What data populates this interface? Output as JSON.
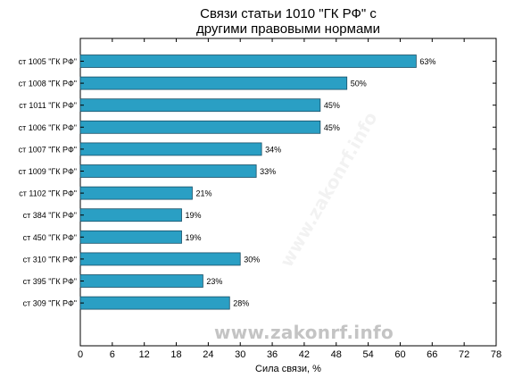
{
  "page": {
    "watermark": "www.zakonrf.info"
  },
  "chart_data": {
    "type": "bar",
    "orientation": "horizontal",
    "title": [
      "Связи статьи 1010 \"ГК РФ\" с",
      "другими правовыми нормами"
    ],
    "xlabel": "Сила связи, %",
    "ylabel": "",
    "xlim": [
      0,
      78
    ],
    "xticks": [
      0,
      6,
      12,
      18,
      24,
      30,
      36,
      42,
      48,
      54,
      60,
      66,
      72,
      78
    ],
    "grid": false,
    "bar_color": "#2a9fc4",
    "bar_edge_color": "#1a4f66",
    "categories": [
      "ст 1005 \"ГК РФ\"",
      "ст 1008 \"ГК РФ\"",
      "ст 1011 \"ГК РФ\"",
      "ст 1006 \"ГК РФ\"",
      "ст 1007 \"ГК РФ\"",
      "ст 1009 \"ГК РФ\"",
      "ст 1102 \"ГК РФ\"",
      "ст 384 \"ГК РФ\"",
      "ст 450 \"ГК РФ\"",
      "ст 310 \"ГК РФ\"",
      "ст 395 \"ГК РФ\"",
      "ст 309 \"ГК РФ\""
    ],
    "values": [
      63,
      50,
      45,
      45,
      34,
      33,
      21,
      19,
      19,
      30,
      23,
      28
    ],
    "value_labels": [
      "63%",
      "50%",
      "45%",
      "45%",
      "34%",
      "33%",
      "21%",
      "19%",
      "19%",
      "30%",
      "23%",
      "28%"
    ]
  }
}
